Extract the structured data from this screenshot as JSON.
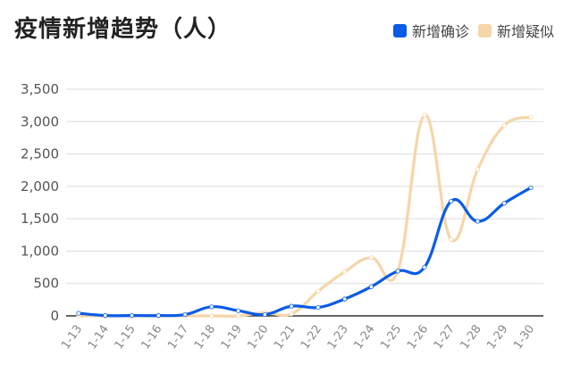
{
  "chart_data": {
    "type": "line",
    "title": "疫情新增趋势（人）",
    "categories": [
      "1-13",
      "1-14",
      "1-15",
      "1-16",
      "1-17",
      "1-18",
      "1-19",
      "1-20",
      "1-21",
      "1-22",
      "1-23",
      "1-24",
      "1-25",
      "1-26",
      "1-27",
      "1-28",
      "1-29",
      "1-30"
    ],
    "series": [
      {
        "name": "新增确诊",
        "color": "#0a5ce6",
        "values": [
          40,
          5,
          5,
          5,
          20,
          140,
          80,
          20,
          150,
          130,
          260,
          450,
          690,
          750,
          1770,
          1460,
          1740,
          1980
        ]
      },
      {
        "name": "新增疑似",
        "color": "#f5d6a8",
        "values": [
          0,
          0,
          0,
          0,
          0,
          0,
          0,
          50,
          30,
          380,
          680,
          900,
          700,
          3100,
          1180,
          2260,
          2940,
          3070
        ]
      }
    ],
    "ylim": [
      0,
      3500
    ],
    "yticks": [
      "0",
      "500",
      "1,000",
      "1,500",
      "2,000",
      "2,500",
      "3,000",
      "3,500"
    ],
    "ytick_values": [
      0,
      500,
      1000,
      1500,
      2000,
      2500,
      3000,
      3500
    ],
    "grid": true,
    "legend_position": "top-right",
    "xlabel": "",
    "ylabel": ""
  }
}
